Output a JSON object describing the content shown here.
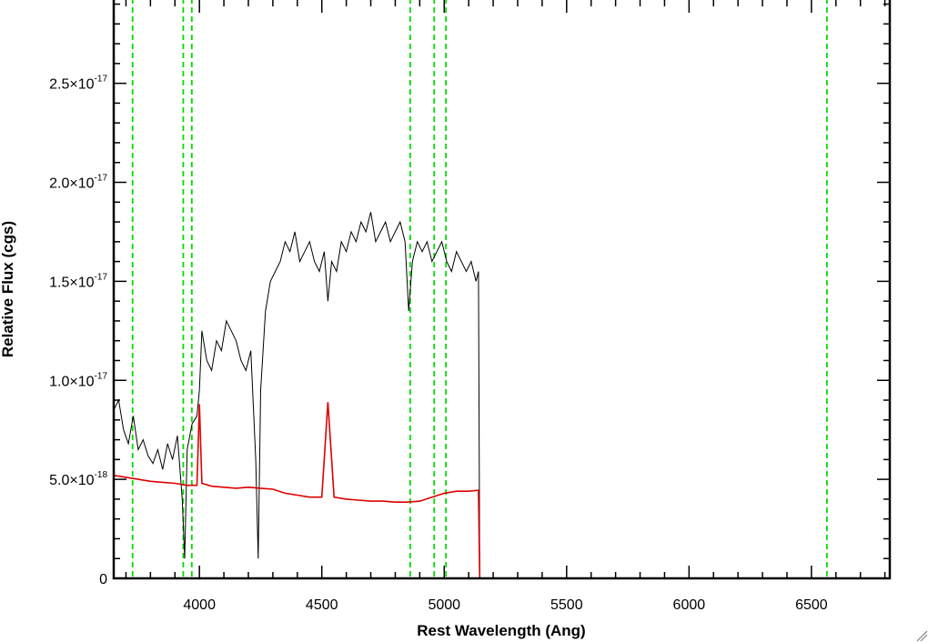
{
  "chart_data": {
    "type": "line",
    "title": "",
    "xlabel": "Rest Wavelength (Ang)",
    "ylabel": "Relative Flux (cgs)",
    "xlim": [
      3650,
      6820
    ],
    "ylim": [
      0,
      2.93e-17
    ],
    "x_ticks": [
      {
        "value": 4000,
        "label": "4000"
      },
      {
        "value": 4500,
        "label": "4500"
      },
      {
        "value": 5000,
        "label": "5000"
      },
      {
        "value": 5500,
        "label": "5500"
      },
      {
        "value": 6000,
        "label": "6000"
      },
      {
        "value": 6500,
        "label": "6500"
      }
    ],
    "y_ticks": [
      {
        "value": 0,
        "mantissa": "0",
        "exponent": ""
      },
      {
        "value": 5e-18,
        "mantissa": "5.0×10",
        "exponent": "-18"
      },
      {
        "value": 1e-17,
        "mantissa": "1.0×10",
        "exponent": "-17"
      },
      {
        "value": 1.5e-17,
        "mantissa": "1.5×10",
        "exponent": "-17"
      },
      {
        "value": 2e-17,
        "mantissa": "2.0×10",
        "exponent": "-17"
      },
      {
        "value": 2.5e-17,
        "mantissa": "2.5×10",
        "exponent": "-17"
      }
    ],
    "grid": false,
    "reference_lines": {
      "color": "#00dd00",
      "style": "dashed",
      "x": [
        3727,
        3934,
        3969,
        4861,
        4959,
        5007,
        6563
      ]
    },
    "series": [
      {
        "color": "#000000",
        "x": [
          3650,
          3670,
          3690,
          3710,
          3730,
          3750,
          3770,
          3790,
          3810,
          3830,
          3850,
          3870,
          3890,
          3910,
          3930,
          3940,
          3950,
          3970,
          3990,
          4000,
          4010,
          4030,
          4050,
          4070,
          4090,
          4110,
          4130,
          4150,
          4170,
          4190,
          4210,
          4230,
          4240,
          4250,
          4270,
          4290,
          4310,
          4330,
          4350,
          4370,
          4390,
          4410,
          4430,
          4450,
          4470,
          4490,
          4510,
          4525,
          4540,
          4560,
          4580,
          4600,
          4620,
          4640,
          4660,
          4680,
          4700,
          4720,
          4740,
          4760,
          4780,
          4800,
          4820,
          4840,
          4855,
          4870,
          4890,
          4910,
          4930,
          4950,
          4970,
          4990,
          5010,
          5030,
          5050,
          5070,
          5090,
          5110,
          5130,
          5140,
          5145,
          6820
        ],
        "y": [
          8.5e-18,
          9e-18,
          7.5e-18,
          6.8e-18,
          8.2e-18,
          6.5e-18,
          7e-18,
          6.2e-18,
          5.8e-18,
          6.5e-18,
          5.5e-18,
          6.8e-18,
          6e-18,
          7.2e-18,
          4e-18,
          1e-18,
          6.5e-18,
          7.8e-18,
          8.2e-18,
          9.5e-18,
          1.25e-17,
          1.1e-17,
          1.05e-17,
          1.2e-17,
          1.15e-17,
          1.3e-17,
          1.25e-17,
          1.2e-17,
          1.1e-17,
          1.05e-17,
          1.15e-17,
          6e-18,
          1e-18,
          9.5e-18,
          1.35e-17,
          1.5e-17,
          1.55e-17,
          1.6e-17,
          1.7e-17,
          1.65e-17,
          1.75e-17,
          1.6e-17,
          1.65e-17,
          1.7e-17,
          1.6e-17,
          1.55e-17,
          1.65e-17,
          1.4e-17,
          1.6e-17,
          1.55e-17,
          1.7e-17,
          1.65e-17,
          1.75e-17,
          1.7e-17,
          1.8e-17,
          1.75e-17,
          1.85e-17,
          1.7e-17,
          1.75e-17,
          1.8e-17,
          1.7e-17,
          1.75e-17,
          1.8e-17,
          1.7e-17,
          1.35e-17,
          1.6e-17,
          1.7e-17,
          1.65e-17,
          1.7e-17,
          1.6e-17,
          1.65e-17,
          1.7e-17,
          1.6e-17,
          1.55e-17,
          1.65e-17,
          1.6e-17,
          1.55e-17,
          1.6e-17,
          1.5e-17,
          1.55e-17,
          0,
          0
        ]
      },
      {
        "color": "#dd0000",
        "x": [
          3650,
          3700,
          3750,
          3800,
          3850,
          3900,
          3950,
          3990,
          4000,
          4010,
          4050,
          4100,
          4150,
          4200,
          4250,
          4300,
          4350,
          4400,
          4450,
          4500,
          4525,
          4550,
          4600,
          4650,
          4700,
          4750,
          4800,
          4850,
          4900,
          4950,
          5000,
          5050,
          5100,
          5140,
          5145,
          6820
        ],
        "y": [
          5.2e-18,
          5.1e-18,
          5e-18,
          4.9e-18,
          4.85e-18,
          4.8e-18,
          4.7e-18,
          4.7e-18,
          8.8e-18,
          4.8e-18,
          4.65e-18,
          4.6e-18,
          4.55e-18,
          4.6e-18,
          4.55e-18,
          4.5e-18,
          4.3e-18,
          4.2e-18,
          4.1e-18,
          4.1e-18,
          8.9e-18,
          4.1e-18,
          4e-18,
          3.95e-18,
          3.9e-18,
          3.9e-18,
          3.85e-18,
          3.85e-18,
          3.9e-18,
          4.1e-18,
          4.3e-18,
          4.4e-18,
          4.4e-18,
          4.45e-18,
          0,
          0
        ]
      }
    ]
  }
}
